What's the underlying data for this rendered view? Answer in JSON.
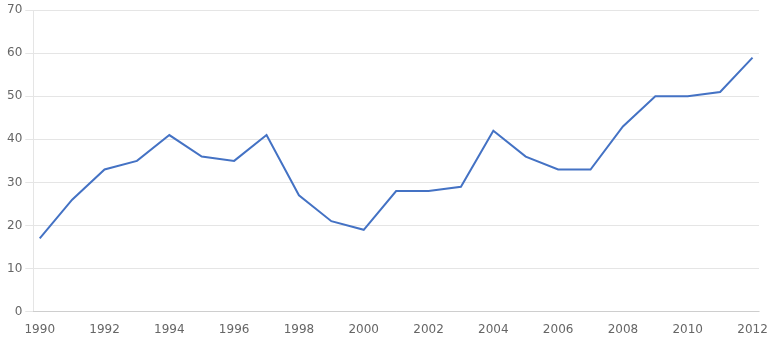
{
  "chart_data": {
    "type": "line",
    "x": [
      1990,
      1991,
      1992,
      1993,
      1994,
      1995,
      1996,
      1997,
      1998,
      1999,
      2000,
      2001,
      2002,
      2003,
      2004,
      2005,
      2006,
      2007,
      2008,
      2009,
      2010,
      2011,
      2012
    ],
    "values": [
      17,
      26,
      33,
      35,
      41,
      36,
      35,
      41,
      27,
      21,
      19,
      28,
      28,
      29,
      42,
      36,
      33,
      33,
      43,
      50,
      50,
      51,
      59
    ],
    "color": "#4472C4",
    "xlim": [
      1989.8,
      2012.2
    ],
    "xticks": [
      1990,
      1992,
      1994,
      1996,
      1998,
      2000,
      2002,
      2004,
      2006,
      2008,
      2010,
      2012
    ],
    "ylim": [
      0,
      70
    ],
    "yticks": [
      0,
      10,
      20,
      30,
      40,
      50,
      60,
      70
    ],
    "grid": true
  }
}
